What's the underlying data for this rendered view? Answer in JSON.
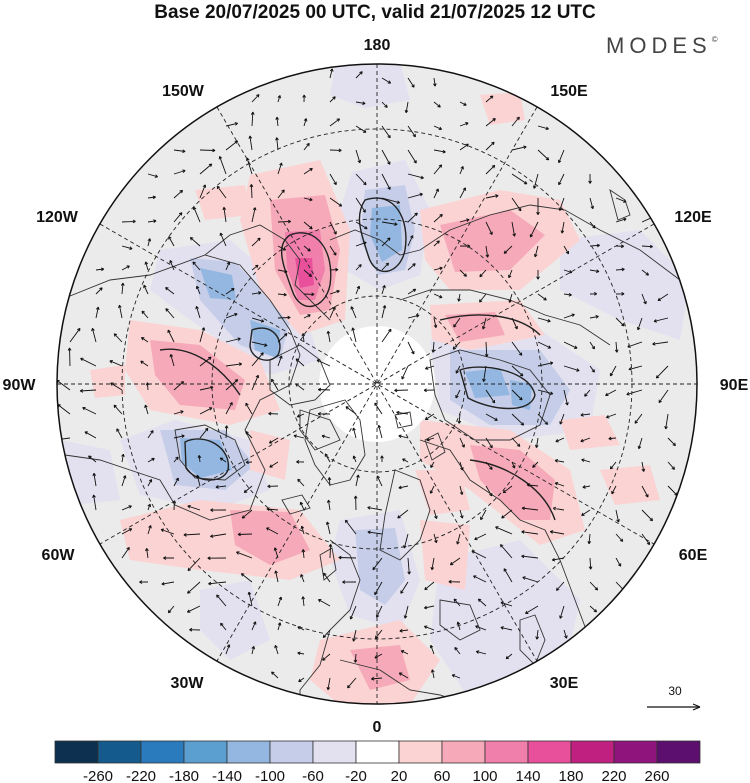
{
  "title": "Base 20/07/2025 00 UTC, valid 21/07/2025 12 UTC",
  "logo": {
    "text": "MODES",
    "mark": "©"
  },
  "meridian_labels": {
    "deg180": "180",
    "w150": "150W",
    "e150": "150E",
    "w120": "120W",
    "e120": "120E",
    "w90": "90W",
    "e90": "90E",
    "w60": "60W",
    "e60": "60E",
    "w30": "30W",
    "e30": "30E",
    "deg0": "0"
  },
  "reference_vector": {
    "label": "30"
  },
  "colorbar": {
    "colors": [
      "#0d3050",
      "#145a8c",
      "#2a7bbd",
      "#5a9fd0",
      "#93b7e0",
      "#c5cde8",
      "#e3e1f0",
      "#ffffff",
      "#fbd3d3",
      "#f6aab9",
      "#f07fab",
      "#e8509c",
      "#c0207f",
      "#8f157c",
      "#5c0f6f"
    ],
    "ticks": [
      "-260",
      "-220",
      "-180",
      "-140",
      "-100",
      "-60",
      "-20",
      "20",
      "60",
      "100",
      "140",
      "180",
      "220",
      "260"
    ]
  },
  "anomaly_colors": {
    "neutral": "#ebebeb",
    "light_blue": "#e3e1f0",
    "blue1": "#c5cde8",
    "blue2": "#93b7e0",
    "blue3": "#5a9fd0",
    "light_pink": "#fbd3d3",
    "pink1": "#f6aab9",
    "pink2": "#f07fab",
    "pink3": "#e8509c"
  }
}
